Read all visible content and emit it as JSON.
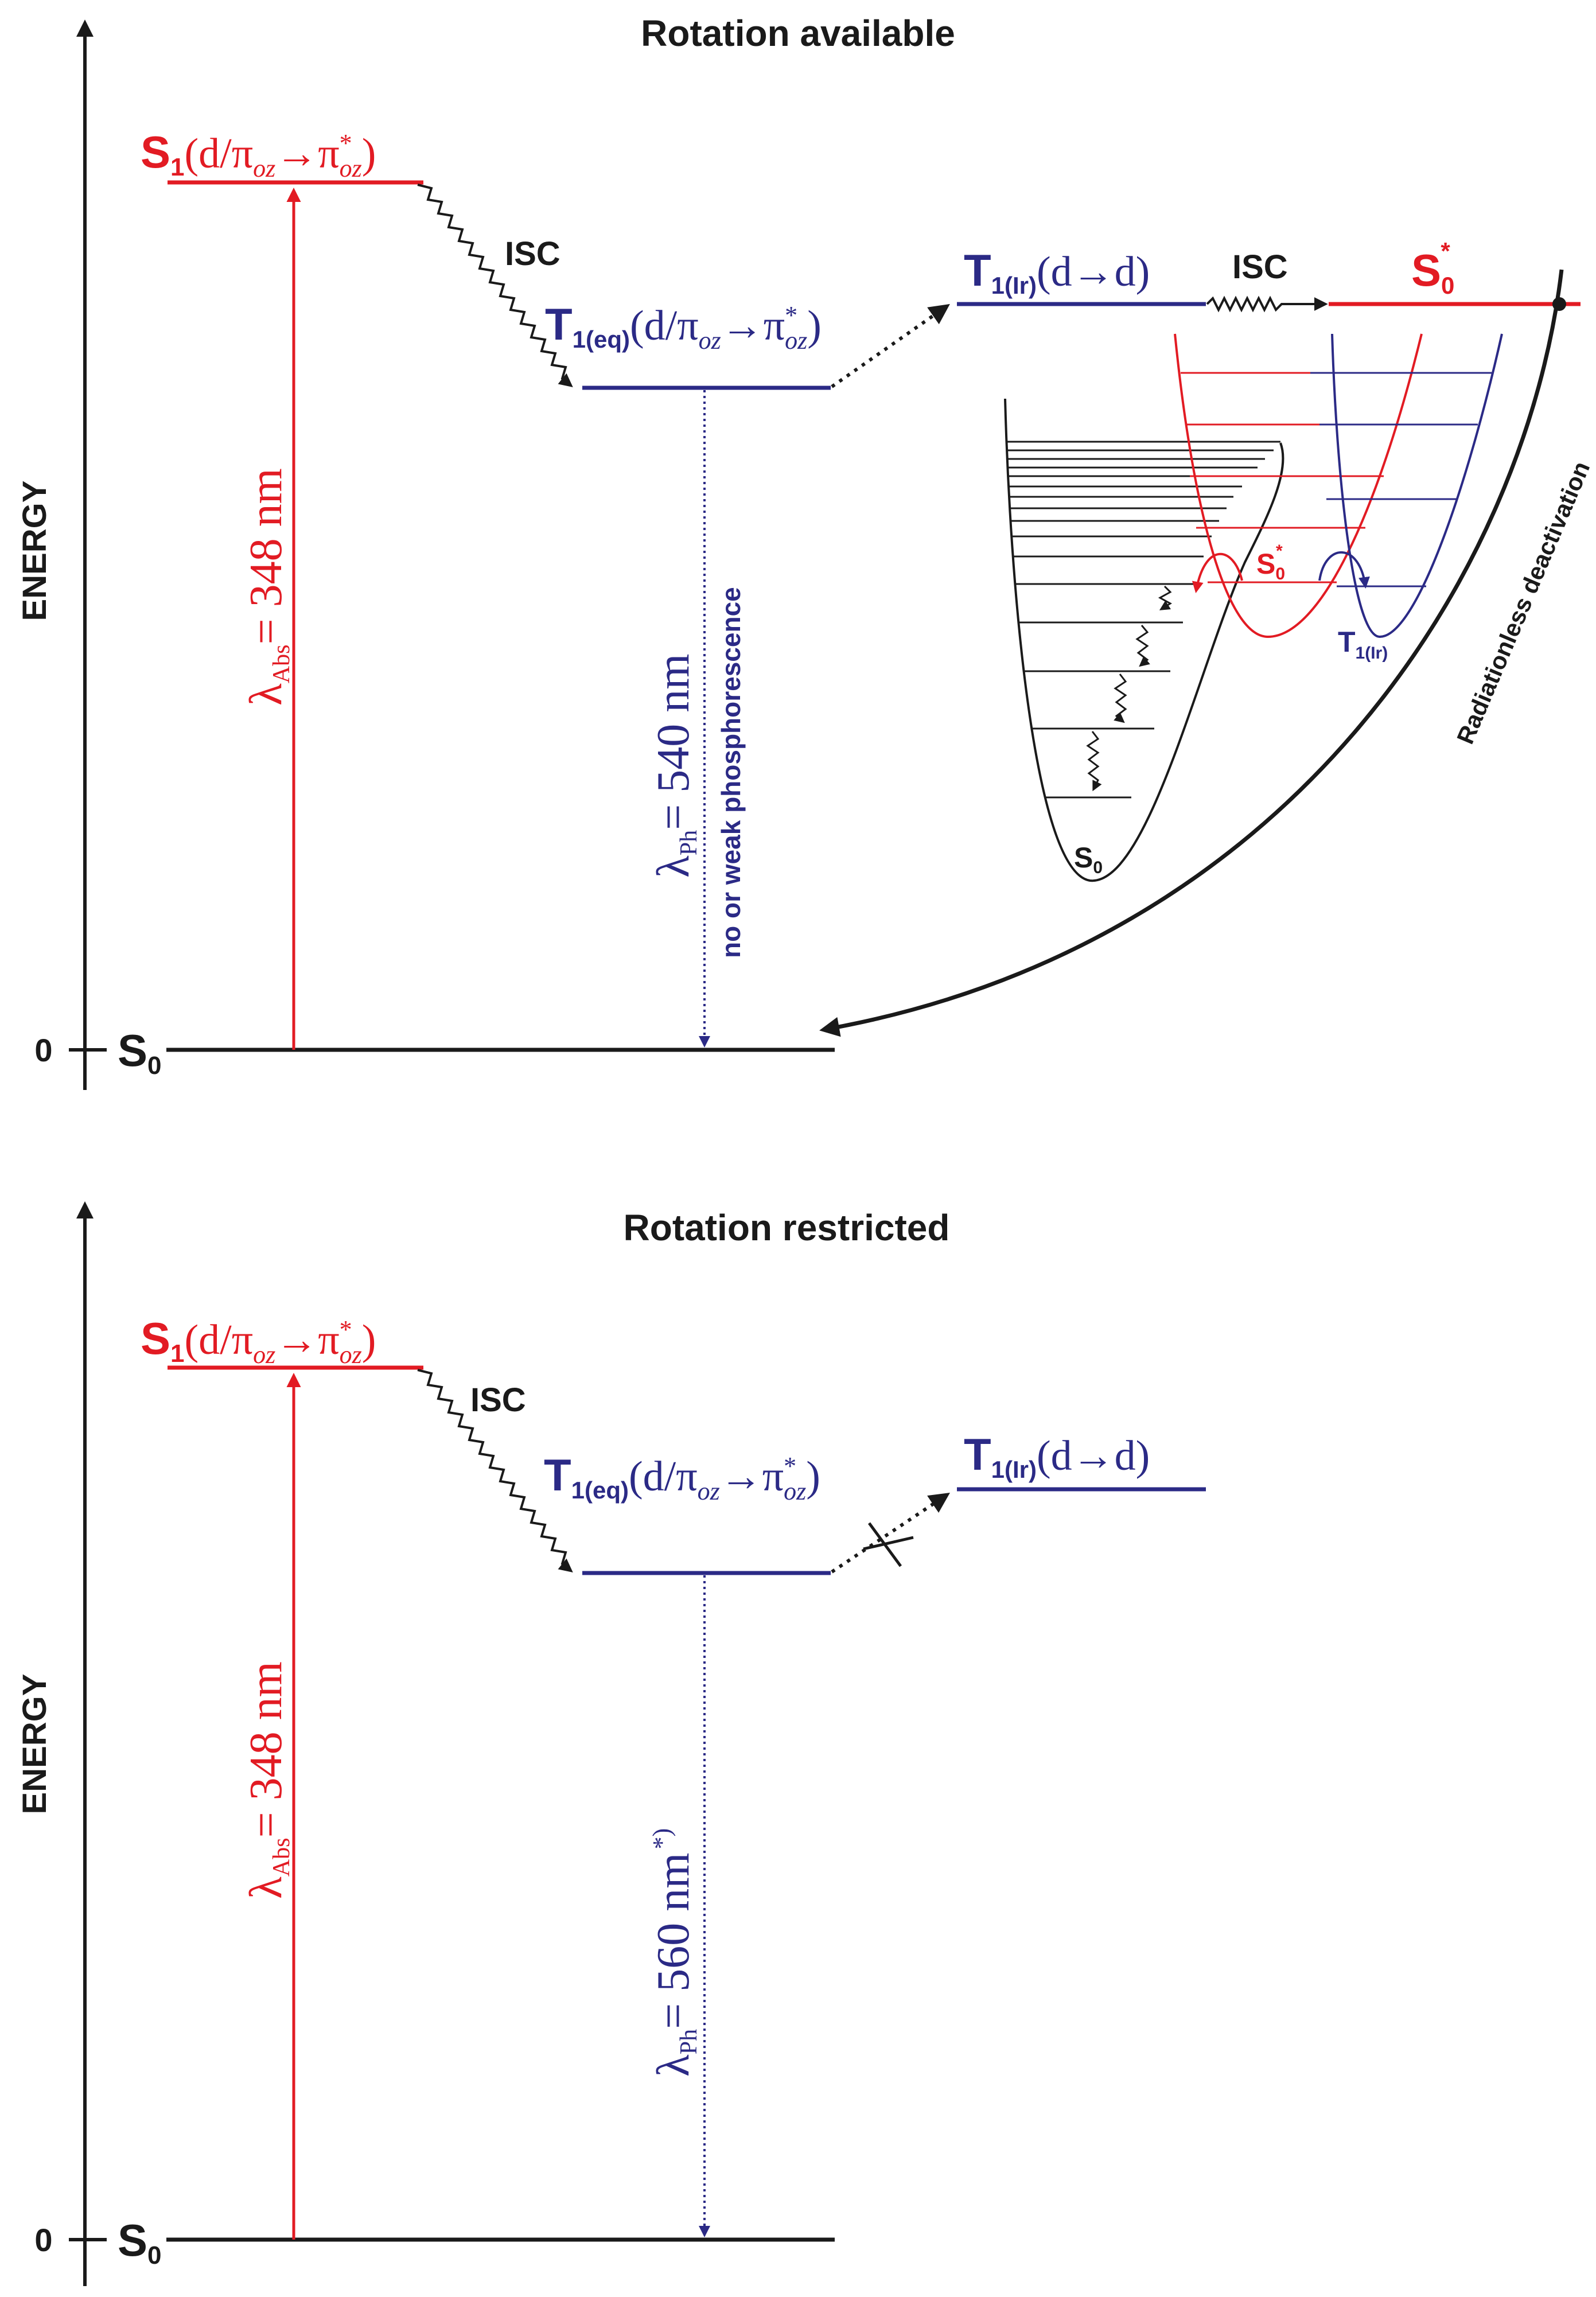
{
  "colors": {
    "black": "#1a1a1a",
    "red": "#e21b23",
    "blue": "#2b2a86"
  },
  "panels": [
    {
      "title": "Rotation available",
      "axis_label": "ENERGY",
      "zero_label": "0",
      "ground": {
        "main": "S",
        "sub": "0"
      },
      "s1": {
        "main": "S",
        "sub": "1",
        "paren_open": "(d/π",
        "oz1": "oz",
        "arrow": "→π",
        "star": "*",
        "oz2": "oz",
        "paren_close": ")"
      },
      "isc1": "ISC",
      "t1eq": {
        "main": "T",
        "sub": "1(eq)",
        "paren_open": "(d/π",
        "oz1": "oz",
        "arrow": "→π",
        "star": "*",
        "oz2": "oz",
        "paren_close": ")"
      },
      "t1ir": {
        "main": "T",
        "sub": "1(Ir)",
        "text": "(d→d)"
      },
      "isc2": "ISC",
      "s0star": {
        "main": "S",
        "sub": "0",
        "star": "*"
      },
      "abs": {
        "lambda": "λ",
        "sub": "Abs",
        "text": "= 348 nm"
      },
      "ph": {
        "lambda": "λ",
        "sub": "Ph",
        "text": "= 540 nm"
      },
      "ph_note": "no or weak phosphorescence",
      "radiationless": "Radiationless deactivation",
      "inset": {
        "s0": {
          "main": "S",
          "sub": "0"
        },
        "s0star": {
          "main": "S",
          "sub": "0",
          "star": "*"
        },
        "t1ir": {
          "main": "T",
          "sub": "1(Ir)"
        }
      }
    },
    {
      "title": "Rotation restricted",
      "axis_label": "ENERGY",
      "zero_label": "0",
      "ground": {
        "main": "S",
        "sub": "0"
      },
      "s1": {
        "main": "S",
        "sub": "1",
        "paren_open": "(d/π",
        "oz1": "oz",
        "arrow": "→π",
        "star": "*",
        "oz2": "oz",
        "paren_close": ")"
      },
      "isc1": "ISC",
      "t1eq": {
        "main": "T",
        "sub": "1(eq)",
        "paren_open": "(d/π",
        "oz1": "oz",
        "arrow": "→π",
        "star": "*",
        "oz2": "oz",
        "paren_close": ")"
      },
      "t1ir": {
        "main": "T",
        "sub": "1(Ir)",
        "text": "(d→d)"
      },
      "abs": {
        "lambda": "λ",
        "sub": "Abs",
        "text": "= 348 nm"
      },
      "ph": {
        "lambda": "λ",
        "sub": "Ph",
        "text": "= 560 nm",
        "star": "*)"
      }
    }
  ]
}
